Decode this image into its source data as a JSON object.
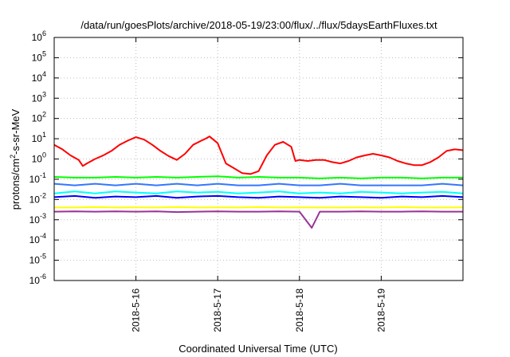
{
  "chart_data": {
    "type": "line",
    "title": "/data/run/goesPlots/archive/2018-05-19/23:00/flux/../flux/5daysEarthFluxes.txt",
    "xlabel": "Coordinated Universal Time (UTC)",
    "ylabel": "protons/cm2-s-sr-MeV",
    "yscale": "log",
    "ylim": [
      1e-06,
      1000000.0
    ],
    "xlim": [
      0,
      5
    ],
    "y_ticks": [
      {
        "base": "10",
        "exp": "-6",
        "value": 1e-06
      },
      {
        "base": "10",
        "exp": "-5",
        "value": 1e-05
      },
      {
        "base": "10",
        "exp": "-4",
        "value": 0.0001
      },
      {
        "base": "10",
        "exp": "-3",
        "value": 0.001
      },
      {
        "base": "10",
        "exp": "-2",
        "value": 0.01
      },
      {
        "base": "10",
        "exp": "-1",
        "value": 0.1
      },
      {
        "base": "10",
        "exp": "0",
        "value": 1
      },
      {
        "base": "10",
        "exp": "1",
        "value": 10
      },
      {
        "base": "10",
        "exp": "2",
        "value": 100
      },
      {
        "base": "10",
        "exp": "3",
        "value": 1000
      },
      {
        "base": "10",
        "exp": "4",
        "value": 10000
      },
      {
        "base": "10",
        "exp": "5",
        "value": 100000
      },
      {
        "base": "10",
        "exp": "6",
        "value": 1000000
      }
    ],
    "x_ticks": [
      {
        "label": "2018-5-16",
        "value": 1
      },
      {
        "label": "2018-5-17",
        "value": 2
      },
      {
        "label": "2018-5-18",
        "value": 3
      },
      {
        "label": "2018-5-19",
        "value": 4
      }
    ],
    "grid": true,
    "legend": "none",
    "series": [
      {
        "color": "#ff0000",
        "x": [
          0,
          0.1,
          0.2,
          0.3,
          0.35,
          0.4,
          0.5,
          0.6,
          0.7,
          0.8,
          0.9,
          1.0,
          1.1,
          1.2,
          1.3,
          1.4,
          1.5,
          1.6,
          1.7,
          1.8,
          1.85,
          1.9,
          2.0,
          2.1,
          2.2,
          2.3,
          2.4,
          2.5,
          2.6,
          2.7,
          2.8,
          2.9,
          2.95,
          3.0,
          3.1,
          3.2,
          3.3,
          3.4,
          3.5,
          3.6,
          3.7,
          3.8,
          3.9,
          4.0,
          4.1,
          4.2,
          4.3,
          4.4,
          4.5,
          4.6,
          4.7,
          4.8,
          4.9,
          5.0
        ],
        "y": [
          5,
          3,
          1.5,
          0.9,
          0.45,
          0.6,
          1.0,
          1.5,
          2.5,
          5,
          8,
          12,
          9,
          5,
          2.5,
          1.4,
          0.9,
          1.8,
          5,
          8,
          10,
          13,
          6,
          0.6,
          0.35,
          0.2,
          0.18,
          0.25,
          1.5,
          5,
          7,
          4,
          0.8,
          0.9,
          0.8,
          0.9,
          0.9,
          0.7,
          0.6,
          0.8,
          1.2,
          1.5,
          1.8,
          1.5,
          1.2,
          0.8,
          0.6,
          0.5,
          0.5,
          0.7,
          1.2,
          2.5,
          3,
          2.7
        ]
      },
      {
        "color": "#00ff00",
        "x": [
          0,
          0.25,
          0.5,
          0.75,
          1.0,
          1.25,
          1.5,
          1.75,
          2.0,
          2.25,
          2.5,
          2.75,
          3.0,
          3.25,
          3.5,
          3.75,
          4.0,
          4.25,
          4.5,
          4.75,
          5.0
        ],
        "y": [
          0.13,
          0.12,
          0.12,
          0.13,
          0.12,
          0.13,
          0.12,
          0.13,
          0.14,
          0.12,
          0.13,
          0.12,
          0.12,
          0.11,
          0.12,
          0.11,
          0.12,
          0.12,
          0.11,
          0.12,
          0.12
        ]
      },
      {
        "color": "#3377ff",
        "x": [
          0,
          0.25,
          0.5,
          0.75,
          1.0,
          1.25,
          1.5,
          1.75,
          2.0,
          2.25,
          2.5,
          2.75,
          3.0,
          3.25,
          3.5,
          3.75,
          4.0,
          4.25,
          4.5,
          4.75,
          5.0
        ],
        "y": [
          0.06,
          0.05,
          0.06,
          0.05,
          0.06,
          0.05,
          0.06,
          0.05,
          0.06,
          0.05,
          0.05,
          0.06,
          0.05,
          0.05,
          0.06,
          0.05,
          0.05,
          0.05,
          0.05,
          0.06,
          0.05
        ]
      },
      {
        "color": "#00ffff",
        "x": [
          0,
          0.25,
          0.5,
          0.75,
          1.0,
          1.25,
          1.5,
          1.75,
          2.0,
          2.25,
          2.5,
          2.75,
          3.0,
          3.25,
          3.5,
          3.75,
          4.0,
          4.25,
          4.5,
          4.75,
          5.0
        ],
        "y": [
          0.02,
          0.025,
          0.02,
          0.025,
          0.022,
          0.02,
          0.025,
          0.022,
          0.024,
          0.02,
          0.022,
          0.025,
          0.02,
          0.022,
          0.02,
          0.024,
          0.022,
          0.02,
          0.022,
          0.024,
          0.02
        ]
      },
      {
        "color": "#0000ff",
        "x": [
          0,
          0.25,
          0.5,
          0.75,
          1.0,
          1.25,
          1.5,
          1.75,
          2.0,
          2.25,
          2.5,
          2.75,
          3.0,
          3.25,
          3.5,
          3.75,
          4.0,
          4.25,
          4.5,
          4.75,
          5.0
        ],
        "y": [
          0.013,
          0.015,
          0.012,
          0.014,
          0.013,
          0.015,
          0.012,
          0.014,
          0.015,
          0.013,
          0.012,
          0.014,
          0.013,
          0.012,
          0.014,
          0.013,
          0.012,
          0.014,
          0.013,
          0.015,
          0.013
        ]
      },
      {
        "color": "#ffff00",
        "x": [
          0,
          0.25,
          0.5,
          0.75,
          1.0,
          1.25,
          1.5,
          1.75,
          2.0,
          2.25,
          2.5,
          2.75,
          3.0,
          3.25,
          3.5,
          3.75,
          4.0,
          4.25,
          4.5,
          4.75,
          5.0
        ],
        "y": [
          0.004,
          0.004,
          0.0042,
          0.004,
          0.0041,
          0.004,
          0.0042,
          0.004,
          0.0041,
          0.004,
          0.0042,
          0.004,
          0.0041,
          0.004,
          0.004,
          0.0041,
          0.004,
          0.0042,
          0.004,
          0.004,
          0.0041
        ]
      },
      {
        "color": "#993399",
        "x": [
          0,
          0.25,
          0.5,
          0.75,
          1.0,
          1.25,
          1.5,
          1.75,
          2.0,
          2.25,
          2.5,
          2.75,
          3.0,
          3.15,
          3.25,
          3.5,
          3.75,
          4.0,
          4.25,
          4.5,
          4.75,
          5.0
        ],
        "y": [
          0.0025,
          0.0026,
          0.0025,
          0.0026,
          0.0025,
          0.0026,
          0.0024,
          0.0025,
          0.0026,
          0.0025,
          0.0025,
          0.0026,
          0.0025,
          0.0004,
          0.0025,
          0.0025,
          0.0026,
          0.0025,
          0.0025,
          0.0026,
          0.0025,
          0.0025
        ]
      }
    ]
  }
}
